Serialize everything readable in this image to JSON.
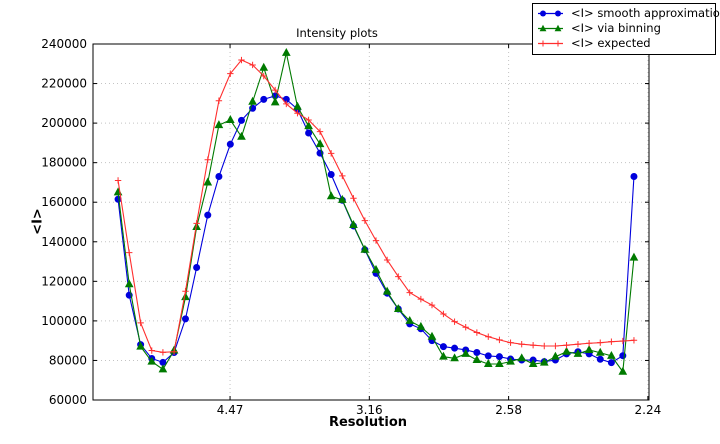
{
  "figure": {
    "title": "Intensity plots",
    "xlabel": "Resolution",
    "ylabel": "<I>"
  },
  "chart_data": {
    "type": "line",
    "title": "Intensity plots",
    "xlabel": "Resolution",
    "ylabel": "<I>",
    "x_axis_note": "x is linear in 1/d^2; tick labels show resolution d in Angstrom",
    "xlim": [
      0.0008,
      0.2004
    ],
    "ylim": [
      60000,
      240000
    ],
    "grid": true,
    "legend_position": "upper right, overlapping top edge of axes",
    "x_ticks": [
      {
        "value": 0.05,
        "label": "4.47"
      },
      {
        "value": 0.1,
        "label": "3.16"
      },
      {
        "value": 0.15,
        "label": "2.58"
      },
      {
        "value": 0.2,
        "label": "2.24"
      }
    ],
    "y_ticks": [
      60000,
      80000,
      100000,
      120000,
      140000,
      160000,
      180000,
      200000,
      220000,
      240000
    ],
    "x": [
      0.0098,
      0.0138,
      0.0179,
      0.0219,
      0.0259,
      0.0299,
      0.034,
      0.038,
      0.042,
      0.046,
      0.0501,
      0.0541,
      0.0581,
      0.0621,
      0.0662,
      0.0702,
      0.0742,
      0.0782,
      0.0823,
      0.0863,
      0.0903,
      0.0943,
      0.0984,
      0.1024,
      0.1064,
      0.1104,
      0.1145,
      0.1185,
      0.1225,
      0.1266,
      0.1306,
      0.1346,
      0.1386,
      0.1427,
      0.1467,
      0.1507,
      0.1547,
      0.1588,
      0.1628,
      0.1668,
      0.1708,
      0.1749,
      0.1789,
      0.1829,
      0.1869,
      0.191,
      0.195
    ],
    "series": [
      {
        "name": "<I> smooth approximation",
        "color": "#0000dd",
        "marker": "circle",
        "values": [
          161500,
          113000,
          88000,
          81000,
          79000,
          84000,
          101000,
          127000,
          153500,
          173000,
          189300,
          201400,
          207500,
          212000,
          213800,
          212000,
          207000,
          195000,
          184800,
          174000,
          161000,
          148000,
          136000,
          124000,
          114000,
          106000,
          98500,
          96000,
          90000,
          87000,
          86200,
          85300,
          84000,
          82300,
          81900,
          80700,
          80200,
          80200,
          79400,
          80200,
          83300,
          84400,
          83300,
          80600,
          78900,
          82400,
          173000
        ]
      },
      {
        "name": "<I> via binning",
        "color": "#007a00",
        "marker": "triangle",
        "values": [
          165000,
          118500,
          87000,
          79400,
          75500,
          85000,
          112000,
          147500,
          170000,
          199000,
          201600,
          193100,
          210800,
          228000,
          210500,
          235500,
          208300,
          198500,
          189400,
          163000,
          161200,
          148500,
          136000,
          125800,
          114800,
          106000,
          100000,
          97000,
          92000,
          81900,
          81100,
          83300,
          80200,
          78200,
          78200,
          79400,
          81100,
          78200,
          78900,
          81900,
          84400,
          83300,
          85300,
          83900,
          82300,
          74300,
          132000
        ]
      },
      {
        "name": "<I> expected",
        "color": "#ff2e2e",
        "marker": "plus",
        "values": [
          171000,
          134500,
          99000,
          85000,
          84100,
          84400,
          115000,
          149300,
          181500,
          211300,
          225000,
          231900,
          229400,
          223800,
          216700,
          209700,
          205000,
          201600,
          195700,
          184700,
          173300,
          162000,
          150700,
          140600,
          130800,
          122400,
          114300,
          111000,
          108000,
          103500,
          99600,
          96800,
          94100,
          92000,
          90400,
          89000,
          88200,
          87700,
          87300,
          87300,
          87700,
          88200,
          88700,
          89000,
          89500,
          89800,
          90200
        ]
      }
    ],
    "style": {
      "grid_color": "#c4c4c4",
      "axis_color": "#000000",
      "background": "#ffffff"
    }
  }
}
